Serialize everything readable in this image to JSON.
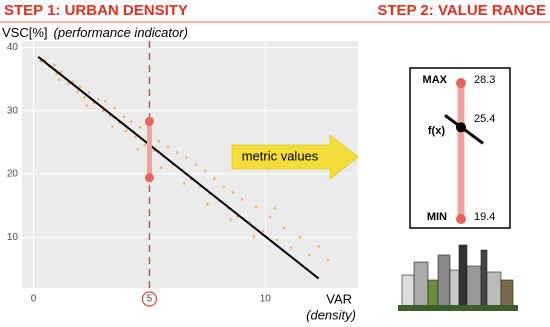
{
  "step1": "STEP 1: URBAN DENSITY",
  "step2": "STEP 2: VALUE RANGE",
  "arrow_label": "metric values",
  "value_range": {
    "max_label": "MAX",
    "max": 28.3,
    "fx_label": "f(x)",
    "value": 25.4,
    "min_label": "MIN",
    "min": 19.4
  },
  "chart_data": {
    "type": "scatter",
    "y_label": "VSC[%]",
    "y_sublabel": "(performance indicator)",
    "x_label": "VAR",
    "x_sublabel": "(density)",
    "color": "#eeb56a",
    "x": [
      0.3,
      0.5,
      0.7,
      0.9,
      1.0,
      1.2,
      1.4,
      1.5,
      1.7,
      1.9,
      2.0,
      2.2,
      2.4,
      2.6,
      2.8,
      3.0,
      3.1,
      3.3,
      3.5,
      3.7,
      3.9,
      4.0,
      4.2,
      4.4,
      4.6,
      4.8,
      5.0,
      5.2,
      5.4,
      5.6,
      5.8,
      6.0,
      6.2,
      6.4,
      6.6,
      6.8,
      7.0,
      7.2,
      7.4,
      7.6,
      7.8,
      8.0,
      8.2,
      8.4,
      8.6,
      8.8,
      9.0,
      9.3,
      9.6,
      9.9,
      10.2,
      10.5,
      10.8,
      11.1,
      11.5,
      11.9,
      12.3,
      12.7,
      1.1,
      2.3,
      3.4,
      4.5,
      5.5,
      6.5,
      7.5,
      8.5,
      9.5,
      10.4
    ],
    "values": [
      37.8,
      38.0,
      36.9,
      37.2,
      35.8,
      36.1,
      35.0,
      34.2,
      34.6,
      33.0,
      33.8,
      32.1,
      32.9,
      31.2,
      31.8,
      30.0,
      31.5,
      29.2,
      30.4,
      28.1,
      29.0,
      26.8,
      28.3,
      25.9,
      27.4,
      24.6,
      26.0,
      23.7,
      25.2,
      22.8,
      24.3,
      21.5,
      23.4,
      20.7,
      22.6,
      19.2,
      21.4,
      18.0,
      20.5,
      16.9,
      19.3,
      15.8,
      18.0,
      14.6,
      17.1,
      13.2,
      16.0,
      12.4,
      14.8,
      11.0,
      13.2,
      9.6,
      11.5,
      8.4,
      10.0,
      7.2,
      8.6,
      6.4,
      34.9,
      30.8,
      27.5,
      23.9,
      21.0,
      18.5,
      15.2,
      12.8,
      10.1,
      14.6
    ],
    "trend": {
      "color": "#000000",
      "x": [
        0.2,
        12.3
      ],
      "values": [
        38.5,
        3.5
      ]
    },
    "marker_x": 5,
    "marker_color": "#d9443a",
    "xlim": [
      -0.5,
      14
    ],
    "ylim": [
      2,
      41
    ],
    "xticks": [
      0,
      5,
      10
    ],
    "yticks": [
      10,
      20,
      30,
      40
    ],
    "grid": true
  }
}
